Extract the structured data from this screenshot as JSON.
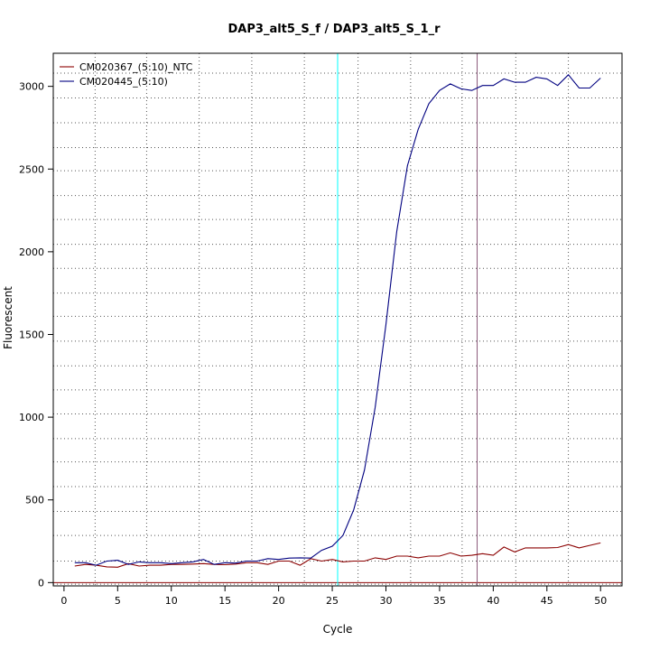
{
  "chart_data": {
    "type": "line",
    "title": "DAP3_alt5_S_f / DAP3_alt5_S_1_r",
    "xlabel": "Cycle",
    "ylabel": "Fluorescent",
    "xlim": [
      -1.0,
      52.0
    ],
    "ylim": [
      -20,
      3200
    ],
    "xticks": [
      0,
      5,
      10,
      15,
      20,
      25,
      30,
      35,
      40,
      45,
      50
    ],
    "yticks": [
      0,
      500,
      1000,
      1500,
      2000,
      2500,
      3000
    ],
    "grid": true,
    "grid_x": [
      2.9,
      7.7,
      12.6,
      17.5,
      22.4,
      27.4,
      32.3,
      37.1,
      42.1,
      47.0
    ],
    "grid_y": [
      -10,
      130,
      285,
      430,
      580,
      730,
      870,
      1020,
      1165,
      1310,
      1460,
      1610,
      1750,
      1900,
      2045,
      2195,
      2340,
      2490,
      2630,
      2780,
      2930,
      3080
    ],
    "legend_position": "top-left",
    "series": [
      {
        "name": "CM020367_(5:10)_NTC",
        "color": "#8b0000",
        "x": [
          1,
          2,
          3,
          4,
          5,
          6,
          7,
          8,
          9,
          10,
          11,
          12,
          13,
          14,
          15,
          16,
          17,
          18,
          19,
          20,
          21,
          22,
          23,
          24,
          25,
          26,
          27,
          28,
          29,
          30,
          31,
          32,
          33,
          34,
          35,
          36,
          37,
          38,
          39,
          40,
          41,
          42,
          43,
          44,
          45,
          46,
          47,
          48,
          49,
          50
        ],
        "values": [
          100,
          110,
          105,
          95,
          93,
          115,
          100,
          105,
          105,
          110,
          110,
          112,
          115,
          110,
          108,
          112,
          120,
          120,
          110,
          130,
          130,
          105,
          145,
          130,
          140,
          125,
          130,
          130,
          150,
          140,
          160,
          160,
          150,
          160,
          160,
          180,
          160,
          165,
          175,
          165,
          215,
          185,
          210,
          210,
          210,
          212,
          230,
          210,
          225,
          240
        ]
      },
      {
        "name": "CM020445_(5:10)",
        "color": "#000080",
        "x": [
          1,
          2,
          3,
          4,
          5,
          6,
          7,
          8,
          9,
          10,
          11,
          12,
          13,
          14,
          15,
          16,
          17,
          18,
          19,
          20,
          21,
          22,
          23,
          24,
          25,
          26,
          27,
          28,
          29,
          30,
          31,
          32,
          33,
          34,
          35,
          36,
          37,
          38,
          39,
          40,
          41,
          42,
          43,
          44,
          45,
          46,
          47,
          48,
          49,
          50
        ],
        "values": [
          120,
          120,
          105,
          130,
          135,
          110,
          125,
          120,
          120,
          115,
          120,
          125,
          140,
          110,
          120,
          118,
          130,
          130,
          145,
          140,
          148,
          150,
          148,
          195,
          220,
          285,
          440,
          680,
          1060,
          1560,
          2120,
          2520,
          2740,
          2895,
          2975,
          3015,
          2985,
          2975,
          3005,
          3005,
          3045,
          3025,
          3025,
          3055,
          3045,
          3005,
          3070,
          2990,
          2990,
          3050
        ]
      }
    ],
    "vertical_lines": [
      {
        "x": 25.5,
        "color": "#00ffff"
      },
      {
        "x": 38.5,
        "color": "#8b5a7a"
      }
    ],
    "horizontal_lines": [
      {
        "y": 0,
        "color": "#8b0000"
      }
    ]
  }
}
